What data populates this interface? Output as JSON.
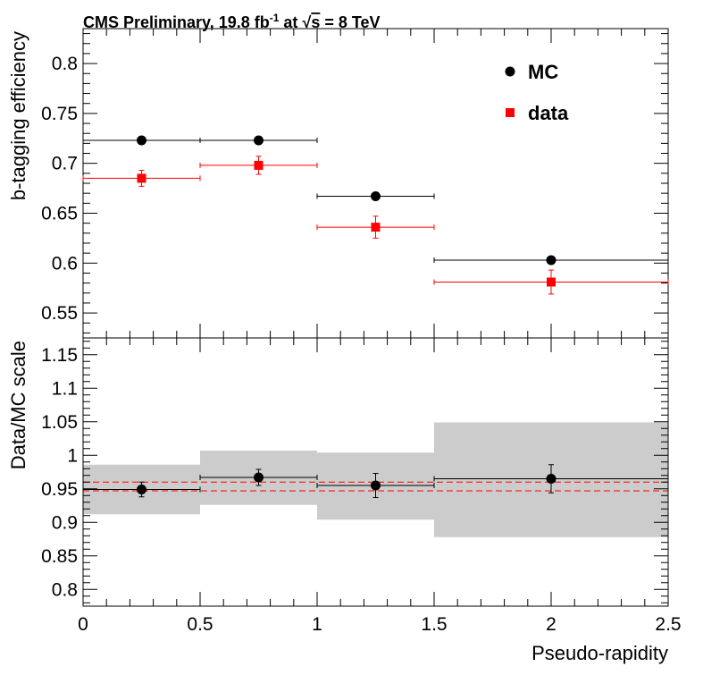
{
  "header": {
    "title_main": "CMS Preliminary, 19.8 fb",
    "title_sup": "-1",
    "title_mid": " at ",
    "title_sqrt": "√",
    "title_s": "s",
    "title_end": " = 8 TeV"
  },
  "legend": {
    "mc_label": "MC",
    "data_label": "data"
  },
  "colors": {
    "mc": "#000000",
    "data": "#ff0000",
    "band": "#cccccc",
    "ref_line": "#ff0000"
  },
  "chart_data": [
    {
      "type": "scatter",
      "name": "efficiency",
      "ylabel": "b-tagging efficiency",
      "xlim": [
        0,
        2.5
      ],
      "ylim": [
        0.525,
        0.835
      ],
      "yticks": [
        "0.55",
        "0.6",
        "0.65",
        "0.7",
        "0.75",
        "0.8"
      ],
      "grid": false,
      "legend_position": "top-right",
      "series": [
        {
          "name": "MC",
          "marker": "circle",
          "points": [
            {
              "x": 0.25,
              "xerr": 0.25,
              "y": 0.723,
              "yerr": 0.001
            },
            {
              "x": 0.75,
              "xerr": 0.25,
              "y": 0.723,
              "yerr": 0.001
            },
            {
              "x": 1.25,
              "xerr": 0.25,
              "y": 0.667,
              "yerr": 0.001
            },
            {
              "x": 2.0,
              "xerr": 0.5,
              "y": 0.603,
              "yerr": 0.001
            }
          ]
        },
        {
          "name": "data",
          "marker": "square",
          "points": [
            {
              "x": 0.25,
              "xerr": 0.25,
              "y": 0.685,
              "yerr": 0.008
            },
            {
              "x": 0.75,
              "xerr": 0.25,
              "y": 0.698,
              "yerr": 0.009
            },
            {
              "x": 1.25,
              "xerr": 0.25,
              "y": 0.636,
              "yerr": 0.011
            },
            {
              "x": 2.0,
              "xerr": 0.5,
              "y": 0.581,
              "yerr": 0.012
            }
          ]
        }
      ]
    },
    {
      "type": "scatter",
      "name": "scale_factor",
      "xlabel": "Pseudo-rapidity",
      "ylabel": "Data/MC scale",
      "xlim": [
        0,
        2.5
      ],
      "ylim": [
        0.775,
        1.175
      ],
      "xticks": [
        "0",
        "0.5",
        "1",
        "1.5",
        "2",
        "2.5"
      ],
      "yticks": [
        "0.8",
        "0.85",
        "0.9",
        "0.95",
        "1",
        "1.05",
        "1.1",
        "1.15"
      ],
      "grid": false,
      "reference_lines": [
        0.96,
        0.947
      ],
      "uncertainty_bands": [
        {
          "x_low": 0.0,
          "x_high": 0.5,
          "y_low": 0.912,
          "y_high": 0.986
        },
        {
          "x_low": 0.5,
          "x_high": 1.0,
          "y_low": 0.926,
          "y_high": 1.007
        },
        {
          "x_low": 1.0,
          "x_high": 1.5,
          "y_low": 0.904,
          "y_high": 1.004
        },
        {
          "x_low": 1.5,
          "x_high": 2.5,
          "y_low": 0.878,
          "y_high": 1.049
        }
      ],
      "points": [
        {
          "x": 0.25,
          "xerr": 0.25,
          "y": 0.949,
          "yerr": 0.011
        },
        {
          "x": 0.75,
          "xerr": 0.25,
          "y": 0.967,
          "yerr": 0.012
        },
        {
          "x": 1.25,
          "xerr": 0.25,
          "y": 0.955,
          "yerr": 0.018
        },
        {
          "x": 2.0,
          "xerr": 0.5,
          "y": 0.965,
          "yerr": 0.021
        }
      ]
    }
  ]
}
